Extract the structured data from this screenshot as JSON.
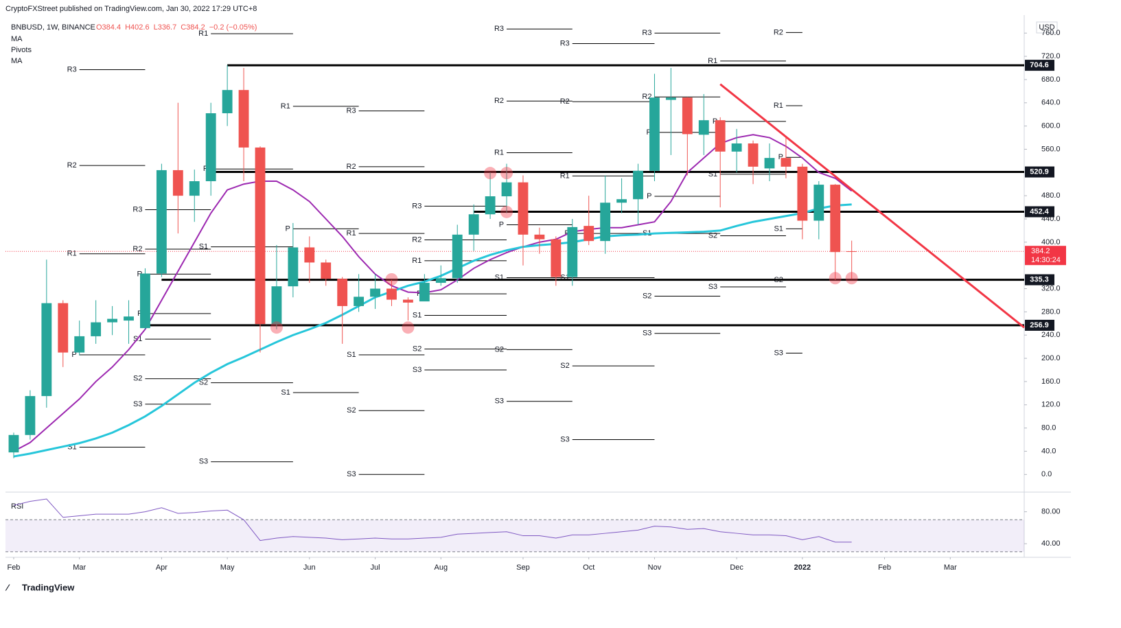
{
  "chart_data": {
    "type": "candlestick",
    "publisher": "CryptoFXStreet published on TradingView.com, Jan 30, 2022 17:29 UTC+8",
    "symbol": "BNBUSD, 1W, BINANCE",
    "ohlc_labels": [
      "O384.4",
      "H402.6",
      "L336.7",
      "C384.2",
      "−0.2 (−0.05%)"
    ],
    "pivots_title": "Pivots",
    "currency": "USD",
    "footer": "TradingView",
    "xlim": [
      -0.5,
      61.5
    ],
    "xticks": [
      {
        "value": 0,
        "label": "Feb"
      },
      {
        "value": 4,
        "label": "Mar"
      },
      {
        "value": 9,
        "label": "Apr"
      },
      {
        "value": 13,
        "label": "May"
      },
      {
        "value": 18,
        "label": "Jun"
      },
      {
        "value": 22,
        "label": "Jul"
      },
      {
        "value": 26,
        "label": "Aug"
      },
      {
        "value": 31,
        "label": "Sep"
      },
      {
        "value": 35,
        "label": "Oct"
      },
      {
        "value": 39,
        "label": "Nov"
      },
      {
        "value": 44,
        "label": "Dec"
      },
      {
        "value": 48,
        "label": "2022"
      },
      {
        "value": 53,
        "label": "Feb"
      },
      {
        "value": 57,
        "label": "Mar"
      }
    ],
    "ylim": [
      -28,
      791
    ],
    "yticks": [
      {
        "value": 0,
        "label": "0.0"
      },
      {
        "value": 40,
        "label": "40.0"
      },
      {
        "value": 80,
        "label": "80.0"
      },
      {
        "value": 120,
        "label": "120.0"
      },
      {
        "value": 160,
        "label": "160.0"
      },
      {
        "value": 200,
        "label": "200.0"
      },
      {
        "value": 240,
        "label": "240.0"
      },
      {
        "value": 280,
        "label": "280.0"
      },
      {
        "value": 320,
        "label": "320.0"
      },
      {
        "value": 400,
        "label": "400.0"
      },
      {
        "value": 440,
        "label": "440.0"
      },
      {
        "value": 480,
        "label": "480.0"
      },
      {
        "value": 560,
        "label": "560.0"
      },
      {
        "value": 600,
        "label": "600.0"
      },
      {
        "value": 640,
        "label": "640.0"
      },
      {
        "value": 680,
        "label": "680.0"
      },
      {
        "value": 720,
        "label": "720.0"
      },
      {
        "value": 760,
        "label": "760.0"
      }
    ],
    "colors": {
      "up": "#26a69a",
      "down": "#ef5350"
    },
    "candles": {
      "open": [
        38,
        68,
        135,
        295,
        210,
        238,
        262,
        265,
        252,
        346,
        524,
        480,
        505,
        622,
        662,
        563,
        259,
        324,
        391,
        365,
        337,
        290,
        306,
        320,
        301,
        298,
        330,
        338,
        413,
        448,
        479,
        503,
        413,
        405,
        340,
        428,
        402,
        468,
        474,
        523,
        645,
        649,
        585,
        610,
        556,
        570,
        527,
        545,
        530,
        437,
        499,
        384.4
      ],
      "high": [
        72,
        145,
        370,
        300,
        265,
        300,
        290,
        300,
        355,
        535,
        640,
        525,
        640,
        705,
        700,
        565,
        395,
        433,
        410,
        370,
        340,
        345,
        345,
        335,
        305,
        345,
        360,
        430,
        465,
        520,
        535,
        515,
        425,
        410,
        440,
        480,
        515,
        510,
        535,
        690,
        700,
        650,
        655,
        615,
        595,
        575,
        570,
        580,
        535,
        505,
        500,
        402.6
      ],
      "low": [
        28,
        60,
        115,
        185,
        205,
        225,
        240,
        225,
        250,
        340,
        415,
        435,
        480,
        600,
        505,
        210,
        250,
        305,
        330,
        325,
        225,
        280,
        285,
        290,
        265,
        300,
        325,
        330,
        385,
        440,
        450,
        360,
        380,
        325,
        325,
        395,
        380,
        450,
        430,
        505,
        550,
        515,
        550,
        460,
        520,
        500,
        505,
        510,
        405,
        405,
        335,
        336.7
      ],
      "close": [
        68,
        135,
        295,
        210,
        238,
        262,
        268,
        272,
        346,
        524,
        480,
        505,
        622,
        662,
        563,
        259,
        324,
        391,
        365,
        337,
        290,
        306,
        320,
        301,
        296,
        330,
        338,
        413,
        448,
        479,
        503,
        413,
        405,
        340,
        426,
        402,
        468,
        474,
        523,
        649,
        649,
        586,
        610,
        556,
        570,
        530,
        545,
        530,
        437,
        499,
        383,
        384.2
      ]
    },
    "series": [
      {
        "name": "MA",
        "color": "#9c27b0",
        "values": [
          40,
          55,
          80,
          105,
          130,
          160,
          185,
          215,
          250,
          300,
          350,
          400,
          450,
          490,
          500,
          505,
          505,
          490,
          470,
          440,
          410,
          375,
          345,
          325,
          314,
          313,
          318,
          335,
          355,
          370,
          382,
          392,
          400,
          405,
          418,
          422,
          425,
          425,
          430,
          435,
          470,
          520,
          545,
          570,
          580,
          585,
          580,
          565,
          545,
          520,
          510,
          488
        ]
      },
      {
        "name": "MA",
        "color": "#26c6da",
        "values": [
          31,
          36,
          42,
          48,
          54,
          62,
          72,
          85,
          100,
          118,
          138,
          158,
          175,
          190,
          202,
          215,
          228,
          240,
          250,
          261,
          275,
          290,
          305,
          315,
          325,
          332,
          342,
          355,
          368,
          378,
          386,
          392,
          395,
          397,
          400,
          405,
          410,
          412,
          413,
          415,
          416,
          417,
          418,
          420,
          428,
          435,
          440,
          445,
          450,
          458,
          463,
          465
        ]
      }
    ],
    "levels": [
      {
        "value": 704.6,
        "from": 13
      },
      {
        "value": 520.9,
        "from": 12
      },
      {
        "value": 452.4,
        "from": 28
      },
      {
        "value": 335.3,
        "from": 9
      },
      {
        "value": 256.9,
        "from": 8
      }
    ],
    "last_price": {
      "value": 384.2,
      "countdown": "14:30:24",
      "color": "#f23645"
    },
    "trendline": {
      "x": [
        43,
        61.5
      ],
      "y": [
        672,
        253
      ],
      "color": "#f23645"
    },
    "highlights": {
      "x": [
        16,
        24,
        23,
        29,
        30,
        30,
        50,
        51
      ],
      "y": [
        253,
        253,
        336,
        519,
        519,
        452,
        338,
        338
      ]
    },
    "pivots": [
      {
        "label": "R3",
        "from": 4,
        "to": 8,
        "value": 697
      },
      {
        "label": "R2",
        "from": 4,
        "to": 8,
        "value": 532
      },
      {
        "label": "R1",
        "from": 4,
        "to": 8,
        "value": 380
      },
      {
        "label": "P",
        "from": 4,
        "to": 8,
        "value": 206
      },
      {
        "label": "S1",
        "from": 4,
        "to": 8,
        "value": 47
      },
      {
        "label": "R3",
        "from": 8,
        "to": 12,
        "value": 456
      },
      {
        "label": "R2",
        "from": 8,
        "to": 12,
        "value": 388
      },
      {
        "label": "R",
        "from": 8,
        "to": 12,
        "value": 345
      },
      {
        "label": "P",
        "from": 8,
        "to": 12,
        "value": 277
      },
      {
        "label": "S1",
        "from": 8,
        "to": 12,
        "value": 233
      },
      {
        "label": "S2",
        "from": 8,
        "to": 12,
        "value": 165
      },
      {
        "label": "S3",
        "from": 8,
        "to": 12,
        "value": 121
      },
      {
        "label": "R1",
        "from": 12,
        "to": 17,
        "value": 759
      },
      {
        "label": "P",
        "from": 12,
        "to": 17,
        "value": 526
      },
      {
        "label": "S1",
        "from": 12,
        "to": 17,
        "value": 392
      },
      {
        "label": "S2",
        "from": 12,
        "to": 17,
        "value": 158
      },
      {
        "label": "S3",
        "from": 12,
        "to": 17,
        "value": 22
      },
      {
        "label": "R1",
        "from": 17,
        "to": 21,
        "value": 634
      },
      {
        "label": "P",
        "from": 17,
        "to": 21,
        "value": 423
      },
      {
        "label": "S1",
        "from": 17,
        "to": 21,
        "value": 141
      },
      {
        "label": "R3",
        "from": 21,
        "to": 25,
        "value": 626
      },
      {
        "label": "R2",
        "from": 21,
        "to": 25,
        "value": 530
      },
      {
        "label": "R1",
        "from": 21,
        "to": 25,
        "value": 415
      },
      {
        "label": "S1",
        "from": 21,
        "to": 25,
        "value": 206
      },
      {
        "label": "S2",
        "from": 21,
        "to": 25,
        "value": 110
      },
      {
        "label": "S3",
        "from": 21,
        "to": 25,
        "value": 0
      },
      {
        "label": "R3",
        "from": 25,
        "to": 30,
        "value": 462
      },
      {
        "label": "R2",
        "from": 25,
        "to": 30,
        "value": 404
      },
      {
        "label": "R1",
        "from": 25,
        "to": 30,
        "value": 368
      },
      {
        "label": "P",
        "from": 25,
        "to": 30,
        "value": 311
      },
      {
        "label": "S1",
        "from": 25,
        "to": 30,
        "value": 274
      },
      {
        "label": "S2",
        "from": 25,
        "to": 30,
        "value": 216
      },
      {
        "label": "S3",
        "from": 25,
        "to": 30,
        "value": 180
      },
      {
        "label": "R3",
        "from": 30,
        "to": 34,
        "value": 767
      },
      {
        "label": "R2",
        "from": 30,
        "to": 34,
        "value": 643
      },
      {
        "label": "R1",
        "from": 30,
        "to": 34,
        "value": 554
      },
      {
        "label": "P",
        "from": 30,
        "to": 34,
        "value": 430
      },
      {
        "label": "S1",
        "from": 30,
        "to": 34,
        "value": 339
      },
      {
        "label": "S2",
        "from": 30,
        "to": 34,
        "value": 215
      },
      {
        "label": "S3",
        "from": 30,
        "to": 34,
        "value": 126
      },
      {
        "label": "R3",
        "from": 34,
        "to": 39,
        "value": 742
      },
      {
        "label": "R2",
        "from": 34,
        "to": 39,
        "value": 642
      },
      {
        "label": "R1",
        "from": 34,
        "to": 39,
        "value": 514
      },
      {
        "label": "P",
        "from": 34,
        "to": 39,
        "value": 415
      },
      {
        "label": "S1",
        "from": 34,
        "to": 39,
        "value": 339
      },
      {
        "label": "S2",
        "from": 34,
        "to": 39,
        "value": 187
      },
      {
        "label": "S3",
        "from": 34,
        "to": 39,
        "value": 60
      },
      {
        "label": "R3",
        "from": 39,
        "to": 43,
        "value": 760
      },
      {
        "label": "R2",
        "from": 39,
        "to": 43,
        "value": 650
      },
      {
        "label": "R",
        "from": 39,
        "to": 43,
        "value": 589
      },
      {
        "label": "P",
        "from": 39,
        "to": 43,
        "value": 479
      },
      {
        "label": "S1",
        "from": 39,
        "to": 43,
        "value": 415
      },
      {
        "label": "S2",
        "from": 39,
        "to": 43,
        "value": 307
      },
      {
        "label": "S3",
        "from": 39,
        "to": 43,
        "value": 243
      },
      {
        "label": "R1",
        "from": 43,
        "to": 47,
        "value": 712
      },
      {
        "label": "P",
        "from": 43,
        "to": 47,
        "value": 608
      },
      {
        "label": "S1",
        "from": 43,
        "to": 47,
        "value": 517
      },
      {
        "label": "S2",
        "from": 43,
        "to": 47,
        "value": 411
      },
      {
        "label": "S3",
        "from": 43,
        "to": 47,
        "value": 323
      },
      {
        "label": "R2",
        "from": 47,
        "to": 48,
        "value": 761
      },
      {
        "label": "R1",
        "from": 47,
        "to": 48,
        "value": 635
      },
      {
        "label": "P",
        "from": 47,
        "to": 48,
        "value": 546
      },
      {
        "label": "S1",
        "from": 47,
        "to": 48,
        "value": 423
      },
      {
        "label": "S2",
        "from": 47,
        "to": 48,
        "value": 335
      },
      {
        "label": "S3",
        "from": 47,
        "to": 48,
        "value": 209
      }
    ],
    "rsi": {
      "title": "RSI",
      "color": "#7e57c2",
      "ylim": [
        23,
        102
      ],
      "band": [
        30,
        70
      ],
      "yticks": [
        {
          "value": 40,
          "label": "40.00"
        },
        {
          "value": 80,
          "label": "80.00"
        }
      ],
      "values": [
        88,
        93,
        96,
        73,
        75,
        77,
        77,
        77,
        80,
        85,
        78,
        79,
        81,
        82,
        70,
        44,
        47,
        49,
        48,
        47,
        45,
        46,
        47,
        46,
        46,
        47,
        48,
        52,
        53,
        54,
        55,
        50,
        50,
        47,
        51,
        51,
        53,
        55,
        57,
        62,
        61,
        58,
        59,
        55,
        53,
        51,
        51,
        50,
        45,
        49,
        42,
        42
      ]
    }
  }
}
